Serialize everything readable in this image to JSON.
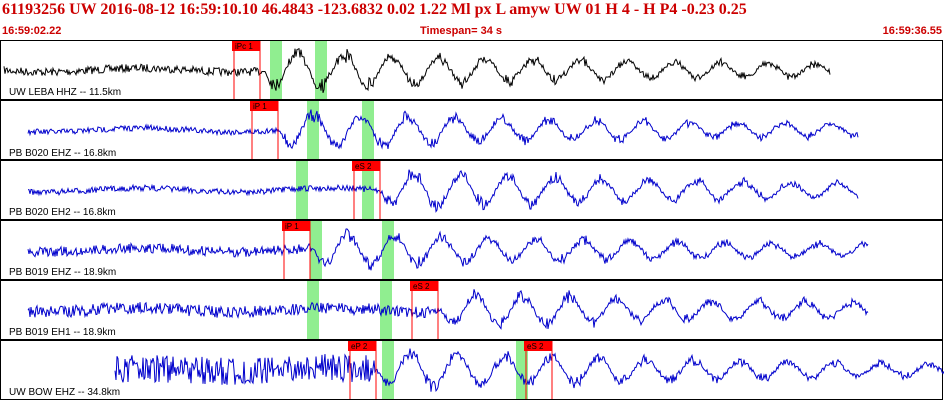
{
  "header": {
    "title": "61193256 UW 2016-08-12 16:59:10.10    46.4843 -123.6832    0.02  1.22 Ml  px  L amyw      UW 01  H   4  -  H P4   -0.23  0.25",
    "start_time": "16:59:02.22",
    "timespan": "Timespan=  34 s",
    "end_time": "16:59:36.55"
  },
  "colors": {
    "trace_first": "#000000",
    "trace": "#0000cc",
    "pick": "#ff0000",
    "window": "#90ee90",
    "header_text": "#cc0000"
  },
  "panels": [
    {
      "label": "UW LEBA HHZ -- 11.5km",
      "color": "black",
      "picks": [
        "iPc 1"
      ],
      "windows": 2
    },
    {
      "label": "PB B020 EHZ -- 16.8km",
      "color": "blue",
      "picks": [
        "iP 1"
      ],
      "windows": 2
    },
    {
      "label": "PB B020 EH2 -- 16.8km",
      "color": "blue",
      "picks": [
        "eS 2"
      ],
      "windows": 2
    },
    {
      "label": "PB B019 EHZ -- 18.9km",
      "color": "blue",
      "picks": [
        "iP 1"
      ],
      "windows": 2
    },
    {
      "label": "PB B019 EH1 -- 18.9km",
      "color": "blue",
      "picks": [
        "eS 2"
      ],
      "windows": 2
    },
    {
      "label": "UW BOW EHZ -- 34.8km",
      "color": "blue",
      "picks": [
        "eP 2",
        "eS 2"
      ],
      "windows": 2
    }
  ]
}
